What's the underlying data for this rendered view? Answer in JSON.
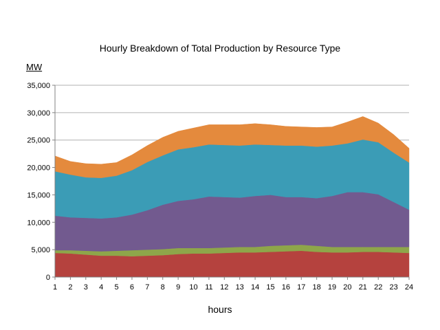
{
  "chart_data": {
    "type": "area",
    "stacked": true,
    "title": "Hourly Breakdown of Total Production by Resource Type",
    "ylabel": "MW",
    "xlabel": "hours",
    "x": [
      1,
      2,
      3,
      4,
      5,
      6,
      7,
      8,
      9,
      10,
      11,
      12,
      13,
      14,
      15,
      16,
      17,
      18,
      19,
      20,
      21,
      22,
      23,
      24
    ],
    "ylim": [
      0,
      35000
    ],
    "yticks": [
      0,
      5000,
      10000,
      15000,
      20000,
      25000,
      30000,
      35000
    ],
    "ytick_labels": [
      "0",
      "5,000",
      "10,000",
      "15,000",
      "20,000",
      "25,000",
      "30,000",
      "35,000"
    ],
    "grid": true,
    "legend": false,
    "series": [
      {
        "color": "#b5423e",
        "values": [
          4400,
          4300,
          4100,
          3900,
          3900,
          3800,
          3900,
          4000,
          4200,
          4300,
          4300,
          4400,
          4500,
          4500,
          4600,
          4700,
          4800,
          4600,
          4500,
          4500,
          4600,
          4600,
          4500,
          4400
        ]
      },
      {
        "color": "#8ea64a",
        "values": [
          500,
          600,
          700,
          800,
          900,
          1100,
          1100,
          1100,
          1100,
          1000,
          1000,
          1000,
          1000,
          1000,
          1100,
          1100,
          1100,
          1100,
          1000,
          1000,
          900,
          900,
          1000,
          1100
        ]
      },
      {
        "color": "#725a8f",
        "values": [
          6300,
          6000,
          6000,
          6000,
          6100,
          6500,
          7200,
          8100,
          8600,
          8900,
          9400,
          9200,
          9000,
          9300,
          9300,
          8800,
          8700,
          8700,
          9300,
          10000,
          10000,
          9600,
          8200,
          6800
        ]
      },
      {
        "color": "#3b9cb6",
        "values": [
          8100,
          7800,
          7400,
          7400,
          7600,
          8100,
          8800,
          9000,
          9400,
          9500,
          9500,
          9500,
          9500,
          9400,
          9100,
          9400,
          9400,
          9400,
          9200,
          8900,
          9600,
          9500,
          9000,
          8600
        ]
      },
      {
        "color": "#e48a3d",
        "values": [
          2800,
          2400,
          2500,
          2500,
          2400,
          2800,
          3000,
          3300,
          3300,
          3500,
          3600,
          3700,
          3800,
          3800,
          3700,
          3500,
          3400,
          3500,
          3400,
          3900,
          4200,
          3500,
          3300,
          2600
        ]
      }
    ]
  }
}
